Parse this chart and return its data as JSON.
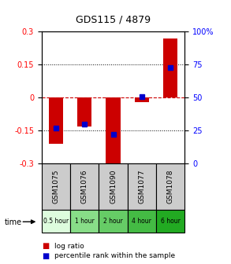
{
  "title": "GDS115 / 4879",
  "samples": [
    "GSM1075",
    "GSM1076",
    "GSM1090",
    "GSM1077",
    "GSM1078"
  ],
  "time_labels": [
    "0.5 hour",
    "1 hour",
    "2 hour",
    "4 hour",
    "6 hour"
  ],
  "time_colors": [
    "#ddfcdd",
    "#88dd88",
    "#66cc66",
    "#44bb44",
    "#22aa22"
  ],
  "log_ratios": [
    -0.21,
    -0.13,
    -0.32,
    -0.02,
    0.27
  ],
  "percentile_ranks": [
    27,
    30,
    22,
    51,
    73
  ],
  "ylim": [
    -0.3,
    0.3
  ],
  "y2lim": [
    0,
    100
  ],
  "yticks": [
    -0.3,
    -0.15,
    0,
    0.15,
    0.3
  ],
  "y2ticks": [
    0,
    25,
    50,
    75,
    100
  ],
  "bar_color": "#cc0000",
  "dot_color": "#0000cc",
  "zero_line_color": "#cc0000"
}
